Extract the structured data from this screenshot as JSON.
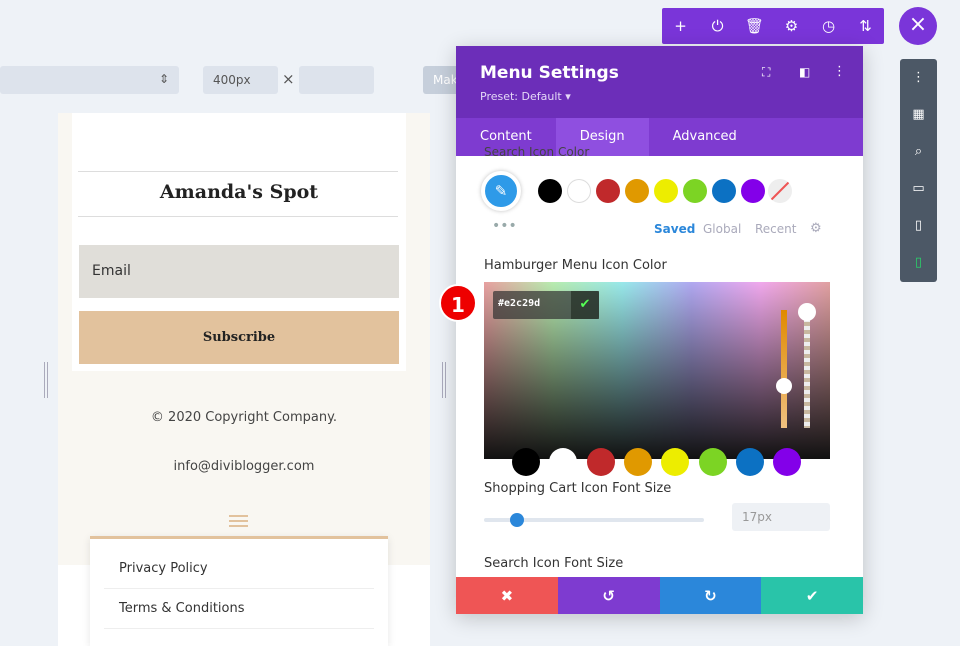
{
  "toolbar": {
    "width_value": "400px",
    "times": "×",
    "make_label": "Mak"
  },
  "top_actions": [
    "+",
    "⏻",
    "🗑",
    "⚙",
    "◷",
    "⇅"
  ],
  "close_label": "×",
  "preview": {
    "site_title": "Amanda's Spot",
    "email_placeholder": "Email",
    "subscribe_label": "Subscribe",
    "copyright": "© 2020 Copyright Company.",
    "email": "info@diviblogger.com",
    "menu_items": [
      "Privacy Policy",
      "Terms & Conditions"
    ]
  },
  "panel": {
    "title": "Menu Settings",
    "preset": "Preset: Default ▾",
    "tabs": [
      "Content",
      "Design",
      "Advanced"
    ],
    "active_tab": "Design",
    "search_icon_color_label": "Search Icon Color",
    "palette": [
      "#000000",
      "#ffffff",
      "#c0292b",
      "#e09900",
      "#eded00",
      "#7cd424",
      "#0c71c3",
      "#8300e9"
    ],
    "palette_tabs": [
      "Saved",
      "Global",
      "Recent"
    ],
    "hamburger_label": "Hamburger Menu Icon Color",
    "hex_value": "#e2c29d",
    "cart_font_label": "Shopping Cart Icon Font Size",
    "cart_font_value": "17px",
    "cart_font_fraction": 0.15,
    "search_font_label": "Search Icon Font Size"
  },
  "step_badge": "1",
  "footer_buttons": [
    "✖",
    "↺",
    "↻",
    "✔"
  ],
  "footer_colors": [
    "#ef5555",
    "#7e3bd0",
    "#2b87da",
    "#29c4a9"
  ]
}
